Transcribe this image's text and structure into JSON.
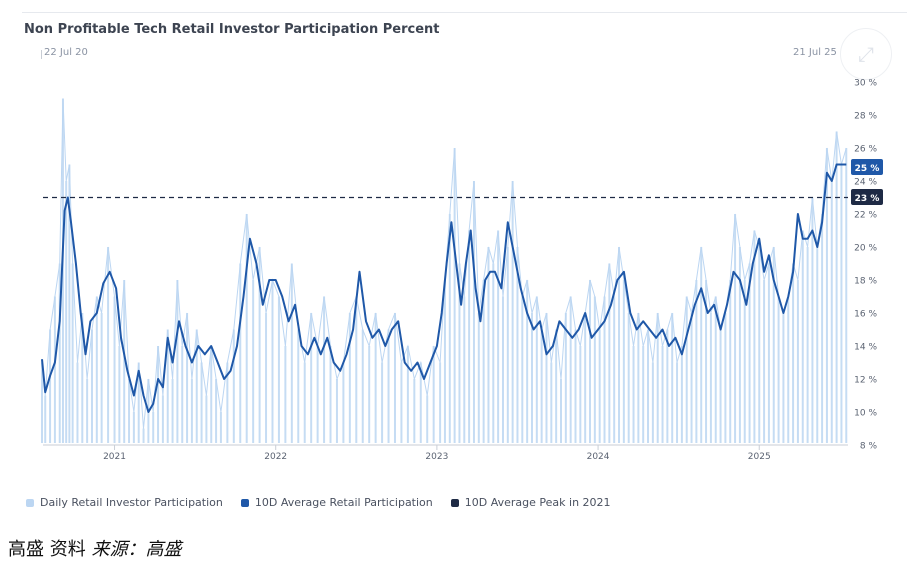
{
  "title": "Non Profitable Tech Retail Investor Participation Percent",
  "range": {
    "start": "22 Jul 20",
    "end": "21 Jul 25"
  },
  "source_prefix": "高盛 资料",
  "source_suffix": "来源：高盛",
  "colors": {
    "daily": "#bcd6f2",
    "avg": "#1f58a8",
    "peak": "#1e2a45",
    "badge_avg": "#1f58a8",
    "badge_peak": "#1e2a45"
  },
  "chart_data": {
    "type": "line",
    "x_range": [
      "2020-07-22",
      "2025-07-21"
    ],
    "x_ticks": [
      "2021",
      "2022",
      "2023",
      "2024",
      "2025"
    ],
    "ylim": [
      8,
      30
    ],
    "y_ticks": [
      "8 %",
      "10 %",
      "12 %",
      "14 %",
      "16 %",
      "18 %",
      "20 %",
      "22 %",
      "24 %",
      "26 %",
      "28 %",
      "30 %"
    ],
    "grid": false,
    "legend_position": "bottom-left",
    "badges": [
      {
        "label": "25 %",
        "value": 25,
        "series": "avg"
      },
      {
        "label": "23 %",
        "value": 23,
        "series": "peak"
      }
    ],
    "series": [
      {
        "name": "Daily Retail Investor Participation",
        "style": "bar",
        "points": [
          [
            2020.55,
            13
          ],
          [
            2020.57,
            11
          ],
          [
            2020.6,
            15
          ],
          [
            2020.63,
            17
          ],
          [
            2020.66,
            19
          ],
          [
            2020.68,
            29
          ],
          [
            2020.7,
            24
          ],
          [
            2020.72,
            25
          ],
          [
            2020.74,
            19
          ],
          [
            2020.77,
            13
          ],
          [
            2020.8,
            16
          ],
          [
            2020.83,
            12
          ],
          [
            2020.86,
            15
          ],
          [
            2020.89,
            17
          ],
          [
            2020.92,
            16
          ],
          [
            2020.96,
            20
          ],
          [
            2021.0,
            17
          ],
          [
            2021.03,
            14
          ],
          [
            2021.06,
            18
          ],
          [
            2021.09,
            12
          ],
          [
            2021.12,
            10
          ],
          [
            2021.15,
            13
          ],
          [
            2021.18,
            9
          ],
          [
            2021.21,
            12
          ],
          [
            2021.24,
            10
          ],
          [
            2021.27,
            14
          ],
          [
            2021.3,
            11
          ],
          [
            2021.33,
            15
          ],
          [
            2021.36,
            12
          ],
          [
            2021.39,
            18
          ],
          [
            2021.42,
            14
          ],
          [
            2021.45,
            16
          ],
          [
            2021.48,
            12
          ],
          [
            2021.51,
            15
          ],
          [
            2021.54,
            13
          ],
          [
            2021.57,
            11
          ],
          [
            2021.6,
            14
          ],
          [
            2021.63,
            12
          ],
          [
            2021.66,
            10
          ],
          [
            2021.7,
            13
          ],
          [
            2021.74,
            15
          ],
          [
            2021.78,
            19
          ],
          [
            2021.82,
            22
          ],
          [
            2021.86,
            18
          ],
          [
            2021.9,
            20
          ],
          [
            2021.94,
            16
          ],
          [
            2021.98,
            18
          ],
          [
            2022.02,
            17
          ],
          [
            2022.06,
            14
          ],
          [
            2022.1,
            19
          ],
          [
            2022.14,
            15
          ],
          [
            2022.18,
            13
          ],
          [
            2022.22,
            16
          ],
          [
            2022.26,
            14
          ],
          [
            2022.3,
            17
          ],
          [
            2022.34,
            14
          ],
          [
            2022.38,
            12
          ],
          [
            2022.42,
            13
          ],
          [
            2022.46,
            16
          ],
          [
            2022.5,
            17
          ],
          [
            2022.54,
            15
          ],
          [
            2022.58,
            14
          ],
          [
            2022.62,
            16
          ],
          [
            2022.66,
            13
          ],
          [
            2022.7,
            15
          ],
          [
            2022.74,
            16
          ],
          [
            2022.78,
            13
          ],
          [
            2022.82,
            14
          ],
          [
            2022.86,
            12
          ],
          [
            2022.9,
            13
          ],
          [
            2022.94,
            11
          ],
          [
            2022.98,
            14
          ],
          [
            2023.02,
            13
          ],
          [
            2023.05,
            18
          ],
          [
            2023.08,
            22
          ],
          [
            2023.11,
            26
          ],
          [
            2023.14,
            19
          ],
          [
            2023.17,
            17
          ],
          [
            2023.2,
            21
          ],
          [
            2023.23,
            24
          ],
          [
            2023.26,
            16
          ],
          [
            2023.29,
            18
          ],
          [
            2023.32,
            20
          ],
          [
            2023.35,
            19
          ],
          [
            2023.38,
            21
          ],
          [
            2023.41,
            17
          ],
          [
            2023.44,
            20
          ],
          [
            2023.47,
            24
          ],
          [
            2023.5,
            20
          ],
          [
            2023.53,
            17
          ],
          [
            2023.56,
            18
          ],
          [
            2023.59,
            16
          ],
          [
            2023.62,
            17
          ],
          [
            2023.65,
            15
          ],
          [
            2023.68,
            16
          ],
          [
            2023.71,
            13
          ],
          [
            2023.74,
            15
          ],
          [
            2023.77,
            12
          ],
          [
            2023.8,
            16
          ],
          [
            2023.83,
            17
          ],
          [
            2023.86,
            15
          ],
          [
            2023.89,
            14
          ],
          [
            2023.92,
            16
          ],
          [
            2023.95,
            18
          ],
          [
            2023.98,
            17
          ],
          [
            2024.01,
            15
          ],
          [
            2024.04,
            17
          ],
          [
            2024.07,
            19
          ],
          [
            2024.1,
            17
          ],
          [
            2024.13,
            20
          ],
          [
            2024.16,
            18
          ],
          [
            2024.19,
            16
          ],
          [
            2024.22,
            14
          ],
          [
            2024.25,
            16
          ],
          [
            2024.28,
            14
          ],
          [
            2024.31,
            15
          ],
          [
            2024.34,
            13
          ],
          [
            2024.37,
            16
          ],
          [
            2024.4,
            14
          ],
          [
            2024.43,
            15
          ],
          [
            2024.46,
            16
          ],
          [
            2024.49,
            13
          ],
          [
            2024.52,
            14
          ],
          [
            2024.55,
            17
          ],
          [
            2024.58,
            16
          ],
          [
            2024.61,
            18
          ],
          [
            2024.64,
            20
          ],
          [
            2024.67,
            18
          ],
          [
            2024.7,
            16
          ],
          [
            2024.73,
            17
          ],
          [
            2024.76,
            15
          ],
          [
            2024.79,
            16
          ],
          [
            2024.82,
            18
          ],
          [
            2024.85,
            22
          ],
          [
            2024.88,
            20
          ],
          [
            2024.91,
            18
          ],
          [
            2024.94,
            19
          ],
          [
            2024.97,
            21
          ],
          [
            2025.0,
            20
          ],
          [
            2025.03,
            18
          ],
          [
            2025.06,
            19
          ],
          [
            2025.09,
            20
          ],
          [
            2025.12,
            17
          ],
          [
            2025.15,
            16
          ],
          [
            2025.18,
            17
          ],
          [
            2025.21,
            19
          ],
          [
            2025.24,
            18
          ],
          [
            2025.27,
            21
          ],
          [
            2025.3,
            20
          ],
          [
            2025.33,
            23
          ],
          [
            2025.36,
            20
          ],
          [
            2025.39,
            22
          ],
          [
            2025.42,
            26
          ],
          [
            2025.45,
            24
          ],
          [
            2025.48,
            27
          ],
          [
            2025.51,
            25
          ],
          [
            2025.54,
            26
          ]
        ]
      },
      {
        "name": "10D Average Retail Participation",
        "style": "line",
        "points": [
          [
            2020.55,
            13.2
          ],
          [
            2020.57,
            11.2
          ],
          [
            2020.6,
            12.2
          ],
          [
            2020.63,
            13.0
          ],
          [
            2020.66,
            15.5
          ],
          [
            2020.69,
            22.2
          ],
          [
            2020.71,
            23.0
          ],
          [
            2020.73,
            21.5
          ],
          [
            2020.76,
            19.0
          ],
          [
            2020.79,
            16.0
          ],
          [
            2020.82,
            13.5
          ],
          [
            2020.85,
            15.5
          ],
          [
            2020.89,
            16.0
          ],
          [
            2020.93,
            17.8
          ],
          [
            2020.97,
            18.5
          ],
          [
            2021.01,
            17.5
          ],
          [
            2021.04,
            14.5
          ],
          [
            2021.08,
            12.5
          ],
          [
            2021.12,
            11.0
          ],
          [
            2021.15,
            12.5
          ],
          [
            2021.18,
            11.0
          ],
          [
            2021.21,
            10.0
          ],
          [
            2021.24,
            10.5
          ],
          [
            2021.27,
            12.0
          ],
          [
            2021.3,
            11.5
          ],
          [
            2021.33,
            14.5
          ],
          [
            2021.36,
            13.0
          ],
          [
            2021.4,
            15.5
          ],
          [
            2021.44,
            14.0
          ],
          [
            2021.48,
            13.0
          ],
          [
            2021.52,
            14.0
          ],
          [
            2021.56,
            13.5
          ],
          [
            2021.6,
            14.0
          ],
          [
            2021.64,
            13.0
          ],
          [
            2021.68,
            12.0
          ],
          [
            2021.72,
            12.5
          ],
          [
            2021.76,
            14.0
          ],
          [
            2021.8,
            17.0
          ],
          [
            2021.84,
            20.5
          ],
          [
            2021.88,
            19.0
          ],
          [
            2021.92,
            16.5
          ],
          [
            2021.96,
            18.0
          ],
          [
            2022.0,
            18.0
          ],
          [
            2022.04,
            17.0
          ],
          [
            2022.08,
            15.5
          ],
          [
            2022.12,
            16.5
          ],
          [
            2022.16,
            14.0
          ],
          [
            2022.2,
            13.5
          ],
          [
            2022.24,
            14.5
          ],
          [
            2022.28,
            13.5
          ],
          [
            2022.32,
            14.5
          ],
          [
            2022.36,
            13.0
          ],
          [
            2022.4,
            12.5
          ],
          [
            2022.44,
            13.5
          ],
          [
            2022.48,
            15.0
          ],
          [
            2022.52,
            18.5
          ],
          [
            2022.56,
            15.5
          ],
          [
            2022.6,
            14.5
          ],
          [
            2022.64,
            15.0
          ],
          [
            2022.68,
            14.0
          ],
          [
            2022.72,
            15.0
          ],
          [
            2022.76,
            15.5
          ],
          [
            2022.8,
            13.0
          ],
          [
            2022.84,
            12.5
          ],
          [
            2022.88,
            13.0
          ],
          [
            2022.92,
            12.0
          ],
          [
            2022.96,
            13.0
          ],
          [
            2023.0,
            14.0
          ],
          [
            2023.03,
            16.0
          ],
          [
            2023.06,
            19.0
          ],
          [
            2023.09,
            21.5
          ],
          [
            2023.12,
            19.0
          ],
          [
            2023.15,
            16.5
          ],
          [
            2023.18,
            19.0
          ],
          [
            2023.21,
            21.0
          ],
          [
            2023.24,
            17.5
          ],
          [
            2023.27,
            15.5
          ],
          [
            2023.3,
            18.0
          ],
          [
            2023.33,
            18.5
          ],
          [
            2023.36,
            18.5
          ],
          [
            2023.4,
            17.5
          ],
          [
            2023.44,
            21.5
          ],
          [
            2023.48,
            19.5
          ],
          [
            2023.52,
            17.5
          ],
          [
            2023.56,
            16.0
          ],
          [
            2023.6,
            15.0
          ],
          [
            2023.64,
            15.5
          ],
          [
            2023.68,
            13.5
          ],
          [
            2023.72,
            14.0
          ],
          [
            2023.76,
            15.5
          ],
          [
            2023.8,
            15.0
          ],
          [
            2023.84,
            14.5
          ],
          [
            2023.88,
            15.0
          ],
          [
            2023.92,
            16.0
          ],
          [
            2023.96,
            14.5
          ],
          [
            2024.0,
            15.0
          ],
          [
            2024.04,
            15.5
          ],
          [
            2024.08,
            16.5
          ],
          [
            2024.12,
            18.0
          ],
          [
            2024.16,
            18.5
          ],
          [
            2024.2,
            16.0
          ],
          [
            2024.24,
            15.0
          ],
          [
            2024.28,
            15.5
          ],
          [
            2024.32,
            15.0
          ],
          [
            2024.36,
            14.5
          ],
          [
            2024.4,
            15.0
          ],
          [
            2024.44,
            14.0
          ],
          [
            2024.48,
            14.5
          ],
          [
            2024.52,
            13.5
          ],
          [
            2024.56,
            15.0
          ],
          [
            2024.6,
            16.5
          ],
          [
            2024.64,
            17.5
          ],
          [
            2024.68,
            16.0
          ],
          [
            2024.72,
            16.5
          ],
          [
            2024.76,
            15.0
          ],
          [
            2024.8,
            16.5
          ],
          [
            2024.84,
            18.5
          ],
          [
            2024.88,
            18.0
          ],
          [
            2024.92,
            16.5
          ],
          [
            2024.96,
            19.0
          ],
          [
            2025.0,
            20.5
          ],
          [
            2025.03,
            18.5
          ],
          [
            2025.06,
            19.5
          ],
          [
            2025.09,
            18.0
          ],
          [
            2025.12,
            17.0
          ],
          [
            2025.15,
            16.0
          ],
          [
            2025.18,
            17.0
          ],
          [
            2025.21,
            18.5
          ],
          [
            2025.24,
            22.0
          ],
          [
            2025.27,
            20.5
          ],
          [
            2025.3,
            20.5
          ],
          [
            2025.33,
            21.0
          ],
          [
            2025.36,
            20.0
          ],
          [
            2025.39,
            21.5
          ],
          [
            2025.42,
            24.5
          ],
          [
            2025.45,
            24.0
          ],
          [
            2025.48,
            25.0
          ],
          [
            2025.51,
            25.0
          ],
          [
            2025.54,
            25.0
          ]
        ]
      },
      {
        "name": "10D Average Peak in 2021",
        "style": "dashed",
        "value": 23
      }
    ]
  }
}
